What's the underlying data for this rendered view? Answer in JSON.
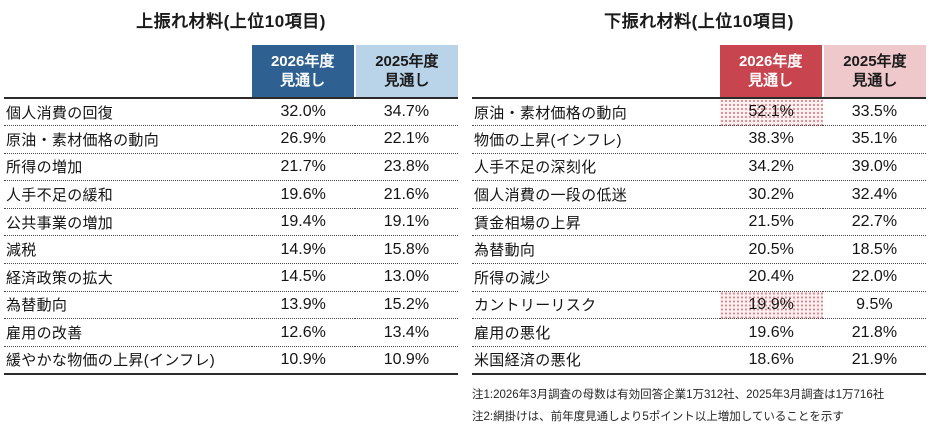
{
  "page": {
    "background": "#ffffff"
  },
  "colors": {
    "upside_header_primary": "#2e6191",
    "upside_header_secondary": "#b9d4e9",
    "downside_header_primary": "#c8444e",
    "downside_header_secondary": "#eec8cb",
    "hatch_dot": "#dc8890",
    "hatch_bg": "#fcf0f1"
  },
  "notes": {
    "note1": "注1:2026年3月調査の母数は有効回答企業1万312社、2025年3月調査は1万716社",
    "note2": "注2:網掛けは、前年度見通しより5ポイント以上増加していることを示す"
  },
  "chart_data": [
    {
      "type": "table",
      "title": "上振れ材料(上位10項目)",
      "theme": "blue",
      "color_primary": "#2e6191",
      "color_secondary": "#b9d4e9",
      "col_headers": [
        "2026年度\n見通し",
        "2025年度\n見通し"
      ],
      "rows": [
        {
          "label": "個人消費の回復",
          "v2026": "32.0%",
          "v2025": "34.7%",
          "highlight_2026": false
        },
        {
          "label": "原油・素材価格の動向",
          "v2026": "26.9%",
          "v2025": "22.1%",
          "highlight_2026": false
        },
        {
          "label": "所得の増加",
          "v2026": "21.7%",
          "v2025": "23.8%",
          "highlight_2026": false
        },
        {
          "label": "人手不足の緩和",
          "v2026": "19.6%",
          "v2025": "21.6%",
          "highlight_2026": false
        },
        {
          "label": "公共事業の増加",
          "v2026": "19.4%",
          "v2025": "19.1%",
          "highlight_2026": false
        },
        {
          "label": "減税",
          "v2026": "14.9%",
          "v2025": "15.8%",
          "highlight_2026": false
        },
        {
          "label": "経済政策の拡大",
          "v2026": "14.5%",
          "v2025": "13.0%",
          "highlight_2026": false
        },
        {
          "label": "為替動向",
          "v2026": "13.9%",
          "v2025": "15.2%",
          "highlight_2026": false
        },
        {
          "label": "雇用の改善",
          "v2026": "12.6%",
          "v2025": "13.4%",
          "highlight_2026": false
        },
        {
          "label": "緩やかな物価の上昇(インフレ)",
          "v2026": "10.9%",
          "v2025": "10.9%",
          "highlight_2026": false
        }
      ]
    },
    {
      "type": "table",
      "title": "下振れ材料(上位10項目)",
      "theme": "red",
      "color_primary": "#c8444e",
      "color_secondary": "#eec8cb",
      "col_headers": [
        "2026年度\n見通し",
        "2025年度\n見通し"
      ],
      "rows": [
        {
          "label": "原油・素材価格の動向",
          "v2026": "52.1%",
          "v2025": "33.5%",
          "highlight_2026": true
        },
        {
          "label": "物価の上昇(インフレ)",
          "v2026": "38.3%",
          "v2025": "35.1%",
          "highlight_2026": false
        },
        {
          "label": "人手不足の深刻化",
          "v2026": "34.2%",
          "v2025": "39.0%",
          "highlight_2026": false
        },
        {
          "label": "個人消費の一段の低迷",
          "v2026": "30.2%",
          "v2025": "32.4%",
          "highlight_2026": false
        },
        {
          "label": "賃金相場の上昇",
          "v2026": "21.5%",
          "v2025": "22.7%",
          "highlight_2026": false
        },
        {
          "label": "為替動向",
          "v2026": "20.5%",
          "v2025": "18.5%",
          "highlight_2026": false
        },
        {
          "label": "所得の減少",
          "v2026": "20.4%",
          "v2025": "22.0%",
          "highlight_2026": false
        },
        {
          "label": "カントリーリスク",
          "v2026": "19.9%",
          "v2025": "9.5%",
          "highlight_2026": true
        },
        {
          "label": "雇用の悪化",
          "v2026": "19.6%",
          "v2025": "21.8%",
          "highlight_2026": false
        },
        {
          "label": "米国経済の悪化",
          "v2026": "18.6%",
          "v2025": "21.9%",
          "highlight_2026": false
        }
      ]
    }
  ]
}
